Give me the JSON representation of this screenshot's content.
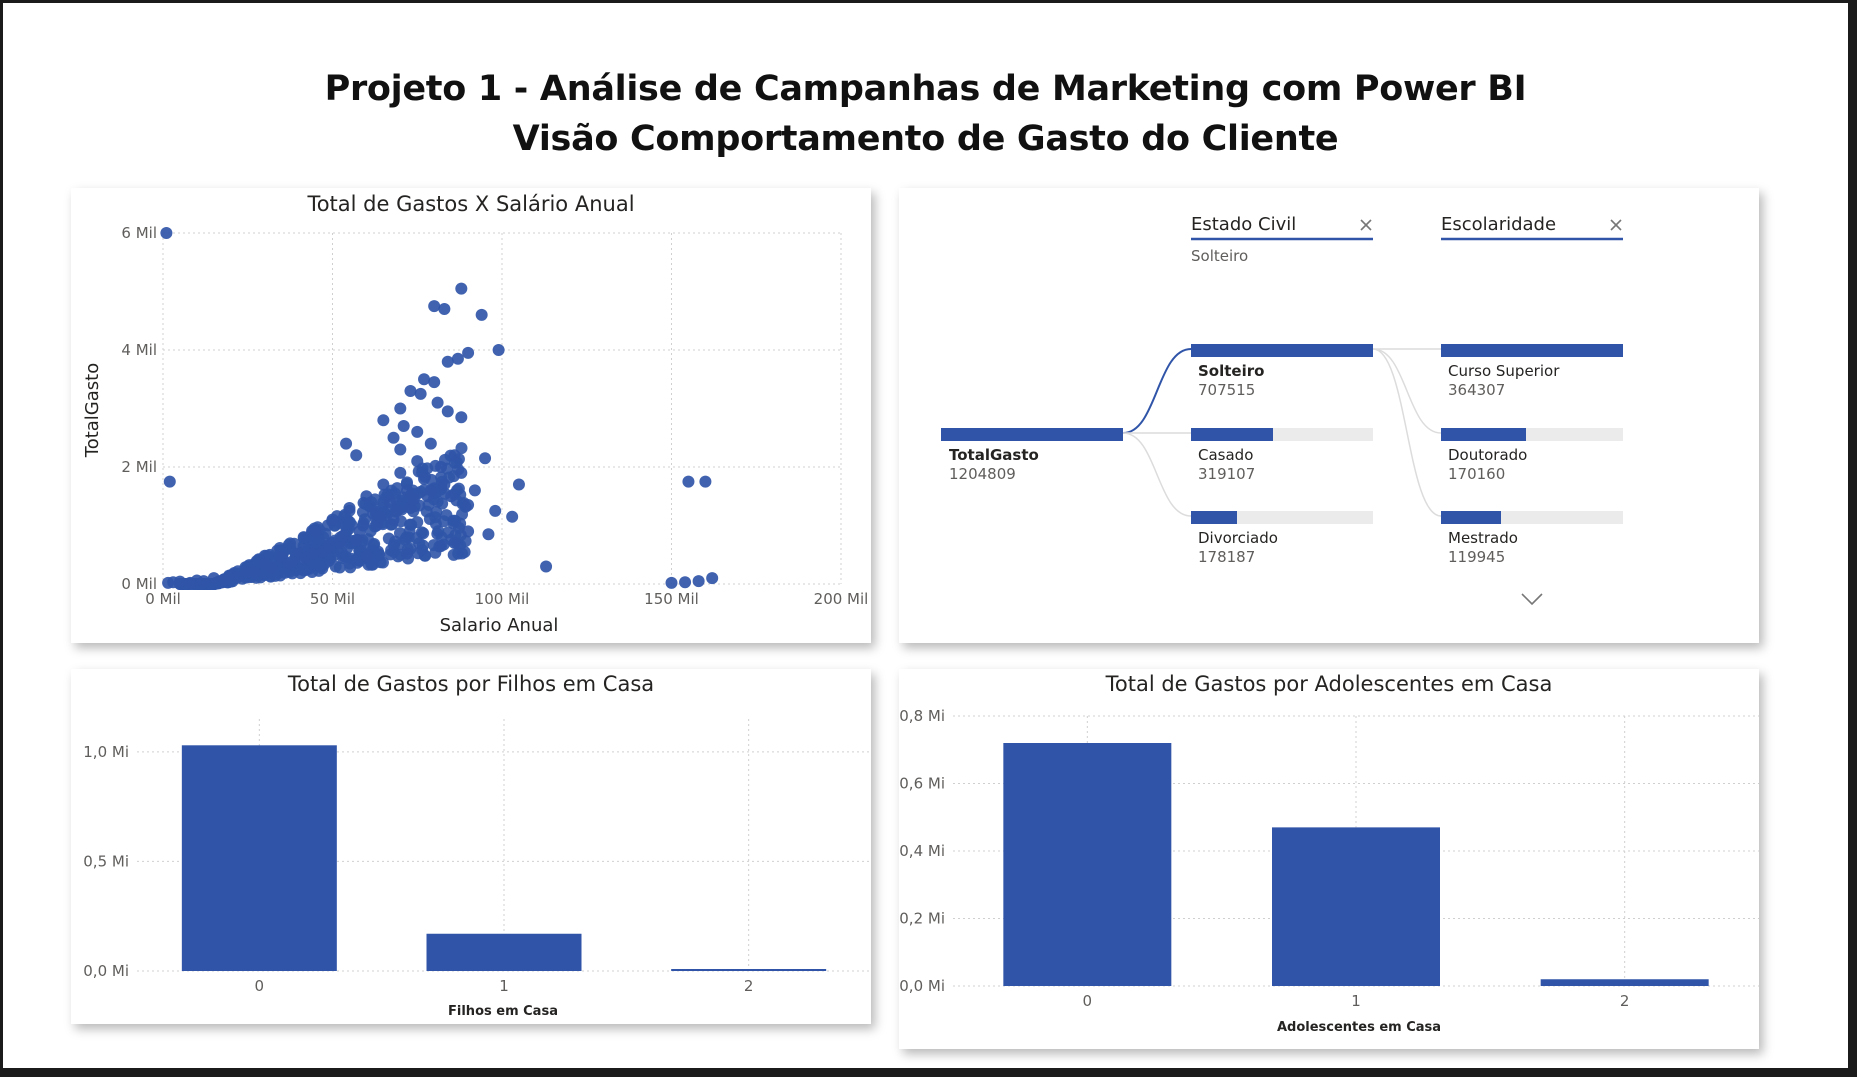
{
  "header": {
    "title_line1": "Projeto 1 - Análise de Campanhas de Marketing com Power BI",
    "title_line2": "Visão Comportamento de Gasto do Cliente"
  },
  "colors": {
    "accent": "#3055a8",
    "track": "#ebebeb",
    "link": "#d6d6d6"
  },
  "scatter": {
    "title": "Total de Gastos X Salário Anual",
    "xlabel": "Salario Anual",
    "ylabel": "TotalGasto",
    "x_ticks": [
      "0 Mil",
      "50 Mil",
      "100 Mil",
      "150 Mil",
      "200 Mil"
    ],
    "y_ticks": [
      "0 Mil",
      "2 Mil",
      "4 Mil",
      "6 Mil"
    ]
  },
  "decomposition": {
    "levels": [
      {
        "header": "Estado Civil",
        "filter": "Solteiro"
      },
      {
        "header": "Escolaridade",
        "filter": ""
      }
    ],
    "root": {
      "name": "TotalGasto",
      "value": "1204809"
    },
    "level1": [
      {
        "name": "Solteiro",
        "value": "707515",
        "selected": true
      },
      {
        "name": "Casado",
        "value": "319107",
        "selected": false
      },
      {
        "name": "Divorciado",
        "value": "178187",
        "selected": false
      }
    ],
    "level2": [
      {
        "name": "Curso Superior",
        "value": "364307"
      },
      {
        "name": "Doutorado",
        "value": "170160"
      },
      {
        "name": "Mestrado",
        "value": "119945"
      }
    ]
  },
  "filhos": {
    "title": "Total de Gastos por Filhos em Casa",
    "xlabel": "Filhos em Casa",
    "y_ticks": [
      "0,0 Mi",
      "0,5 Mi",
      "1,0 Mi"
    ],
    "categories": [
      "0",
      "1",
      "2"
    ]
  },
  "adolescentes": {
    "title": "Total de Gastos por Adolescentes em Casa",
    "xlabel": "Adolescentes em Casa",
    "y_ticks": [
      "0,0 Mi",
      "0,2 Mi",
      "0,4 Mi",
      "0,6 Mi",
      "0,8 Mi"
    ],
    "categories": [
      "0",
      "1",
      "2"
    ]
  },
  "chart_data": [
    {
      "type": "scatter",
      "title": "Total de Gastos X Salário Anual",
      "xlabel": "Salario Anual",
      "ylabel": "TotalGasto",
      "xlim": [
        0,
        200000
      ],
      "ylim": [
        0,
        6000
      ],
      "grid": true,
      "points": [
        [
          1000,
          6000
        ],
        [
          2000,
          1750
        ],
        [
          88000,
          5050
        ],
        [
          80000,
          4750
        ],
        [
          83000,
          4700
        ],
        [
          94000,
          4600
        ],
        [
          99000,
          4000
        ],
        [
          90000,
          3950
        ],
        [
          87000,
          3850
        ],
        [
          84000,
          3800
        ],
        [
          77000,
          3500
        ],
        [
          80000,
          3450
        ],
        [
          73000,
          3300
        ],
        [
          81000,
          3100
        ],
        [
          76000,
          3250
        ],
        [
          70000,
          3000
        ],
        [
          84000,
          2950
        ],
        [
          88000,
          2850
        ],
        [
          65000,
          2800
        ],
        [
          54000,
          2400
        ],
        [
          57000,
          2200
        ],
        [
          70000,
          2300
        ],
        [
          95000,
          2150
        ],
        [
          105000,
          1700
        ],
        [
          98000,
          1250
        ],
        [
          103000,
          1150
        ],
        [
          90000,
          900
        ],
        [
          96000,
          850
        ],
        [
          113000,
          300
        ],
        [
          86000,
          700
        ],
        [
          82000,
          650
        ],
        [
          72000,
          520
        ],
        [
          60000,
          480
        ],
        [
          48000,
          600
        ],
        [
          40000,
          500
        ],
        [
          35000,
          450
        ],
        [
          30000,
          350
        ],
        [
          25000,
          200
        ],
        [
          20000,
          150
        ],
        [
          15000,
          100
        ],
        [
          10000,
          60
        ],
        [
          5000,
          40
        ],
        [
          45000,
          900
        ],
        [
          50000,
          1100
        ],
        [
          55000,
          1300
        ],
        [
          60000,
          1500
        ],
        [
          65000,
          1700
        ],
        [
          70000,
          1900
        ],
        [
          75000,
          2100
        ],
        [
          62000,
          1200
        ],
        [
          67000,
          1400
        ],
        [
          72000,
          1600
        ],
        [
          77000,
          1800
        ],
        [
          82000,
          2000
        ],
        [
          58000,
          900
        ],
        [
          63000,
          1000
        ],
        [
          68000,
          1100
        ],
        [
          73000,
          1300
        ],
        [
          78000,
          1500
        ],
        [
          83000,
          1700
        ],
        [
          52000,
          700
        ],
        [
          57000,
          750
        ],
        [
          42000,
          450
        ],
        [
          37000,
          350
        ],
        [
          47000,
          550
        ],
        [
          88000,
          1900
        ],
        [
          155000,
          1750
        ],
        [
          160000,
          1750
        ],
        [
          158000,
          50
        ],
        [
          162000,
          100
        ],
        [
          154000,
          30
        ],
        [
          150000,
          20
        ],
        [
          1500,
          20
        ],
        [
          3000,
          30
        ],
        [
          8000,
          20
        ],
        [
          12000,
          50
        ],
        [
          18000,
          80
        ],
        [
          22000,
          120
        ],
        [
          27000,
          200
        ],
        [
          32000,
          280
        ],
        [
          38000,
          380
        ],
        [
          44000,
          520
        ],
        [
          49000,
          650
        ],
        [
          53000,
          820
        ],
        [
          59000,
          1000
        ],
        [
          64000,
          1150
        ],
        [
          69000,
          1250
        ],
        [
          74000,
          1450
        ],
        [
          79000,
          1600
        ],
        [
          85000,
          1500
        ],
        [
          90000,
          1350
        ],
        [
          92000,
          1600
        ],
        [
          86000,
          2200
        ],
        [
          79000,
          2400
        ],
        [
          75000,
          2600
        ],
        [
          68000,
          2500
        ],
        [
          71000,
          2700
        ]
      ]
    },
    {
      "type": "bar",
      "title": "Total de Gastos por Filhos em Casa",
      "xlabel": "Filhos em Casa",
      "categories": [
        "0",
        "1",
        "2"
      ],
      "values": [
        1030000,
        170000,
        5000
      ],
      "ylim": [
        0,
        1150000
      ],
      "grid": true
    },
    {
      "type": "bar",
      "title": "Total de Gastos por Adolescentes em Casa",
      "xlabel": "Adolescentes em Casa",
      "categories": [
        "0",
        "1",
        "2"
      ],
      "values": [
        720000,
        470000,
        20000
      ],
      "ylim": [
        0,
        800000
      ],
      "grid": true
    }
  ]
}
